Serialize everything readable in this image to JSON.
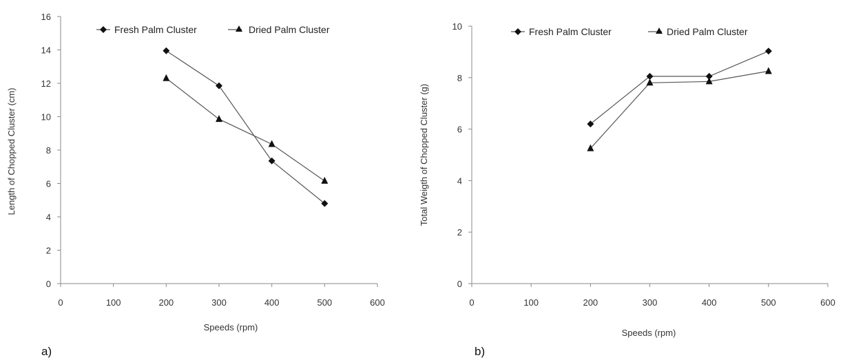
{
  "chart_data": [
    {
      "type": "line",
      "panel_label": "a)",
      "xlabel": "Speeds (rpm)",
      "ylabel": "Length of Chopped Cluster (cm)",
      "xlim": [
        0,
        600
      ],
      "ylim": [
        0,
        16
      ],
      "x_ticks": [
        "0",
        "100",
        "200",
        "300",
        "400",
        "500",
        "600"
      ],
      "y_ticks": [
        "0",
        "2",
        "4",
        "6",
        "8",
        "10",
        "12",
        "14",
        "16"
      ],
      "grid": false,
      "legend_position": "top",
      "x": [
        200,
        300,
        400,
        500
      ],
      "series": [
        {
          "name": "Fresh Palm Cluster",
          "marker": "diamond",
          "values": [
            13.95,
            11.85,
            7.35,
            4.8
          ]
        },
        {
          "name": "Dried Palm Cluster",
          "marker": "triangle",
          "values": [
            12.3,
            9.85,
            8.35,
            6.15
          ]
        }
      ]
    },
    {
      "type": "line",
      "panel_label": "b)",
      "xlabel": "Speeds (rpm)",
      "ylabel": "Total Weigth of Chopped Cluster (g)",
      "xlim": [
        0,
        600
      ],
      "ylim": [
        0,
        10
      ],
      "x_ticks": [
        "0",
        "100",
        "200",
        "300",
        "400",
        "500",
        "600"
      ],
      "y_ticks": [
        "0",
        "2",
        "4",
        "6",
        "8",
        "10"
      ],
      "grid": false,
      "legend_position": "top",
      "x": [
        200,
        300,
        400,
        500
      ],
      "series": [
        {
          "name": "Fresh Palm Cluster",
          "marker": "diamond",
          "values": [
            6.2,
            8.05,
            8.05,
            9.03
          ]
        },
        {
          "name": "Dried Palm Cluster",
          "marker": "triangle",
          "values": [
            5.25,
            7.8,
            7.85,
            8.25
          ]
        }
      ]
    }
  ],
  "colors": {
    "axis": "#8a8a8a",
    "line": "#555555",
    "marker": "#111111"
  }
}
